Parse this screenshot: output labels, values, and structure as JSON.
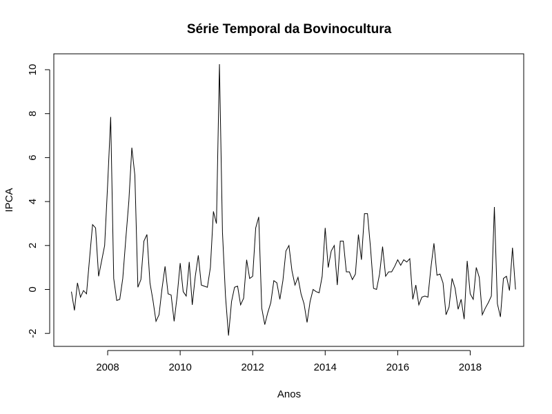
{
  "chart_data": {
    "type": "line",
    "title": "Série Temporal da Bovinocultura",
    "xlabel": "Anos",
    "ylabel": "IPCA",
    "xlim": [
      2007.0,
      2019.0
    ],
    "ylim": [
      -2.1,
      10.25
    ],
    "x_ticks": [
      2008,
      2010,
      2012,
      2014,
      2016,
      2018
    ],
    "x_tick_labels": [
      "2008",
      "2010",
      "2012",
      "2014",
      "2016",
      "2018"
    ],
    "y_ticks": [
      -2,
      0,
      2,
      4,
      6,
      8,
      10
    ],
    "y_tick_labels": [
      "-2",
      "0",
      "2",
      "4",
      "6",
      "8",
      "10"
    ],
    "grid": false,
    "legend": "none",
    "line_color": "#000000",
    "series": [
      {
        "start": 2007.0,
        "step_months": 1,
        "values": [
          -0.1,
          -0.95,
          0.3,
          -0.35,
          -0.05,
          -0.2,
          1.4,
          2.95,
          2.8,
          0.6,
          1.3,
          2.0,
          4.8,
          7.85,
          0.5,
          -0.5,
          -0.45,
          0.5,
          2.3,
          4.0,
          6.45,
          5.2,
          0.1,
          0.45,
          2.2,
          2.5,
          0.3,
          -0.5,
          -1.45,
          -1.15,
          0.05,
          1.05,
          -0.2,
          -0.25,
          -1.45,
          -0.3,
          1.2,
          -0.1,
          -0.3,
          1.25,
          -0.7,
          0.6,
          1.55,
          0.2,
          0.15,
          0.1,
          1.0,
          3.55,
          3.0,
          10.25,
          2.6,
          -0.3,
          -2.1,
          -0.55,
          0.1,
          0.15,
          -0.7,
          -0.4,
          1.35,
          0.5,
          0.6,
          2.8,
          3.3,
          -0.85,
          -1.6,
          -1.05,
          -0.6,
          0.4,
          0.3,
          -0.45,
          0.4,
          1.75,
          2.0,
          0.85,
          0.2,
          0.55,
          -0.2,
          -0.65,
          -1.5,
          -0.55,
          0.0,
          -0.1,
          -0.15,
          0.6,
          2.8,
          1.0,
          1.75,
          2.0,
          0.2,
          2.2,
          2.2,
          0.8,
          0.8,
          0.45,
          0.7,
          2.5,
          1.35,
          3.45,
          3.45,
          1.9,
          0.05,
          0.0,
          0.7,
          1.95,
          0.6,
          0.8,
          0.8,
          1.05,
          1.35,
          1.1,
          1.35,
          1.25,
          1.4,
          -0.45,
          0.2,
          -0.7,
          -0.35,
          -0.3,
          -0.35,
          1.0,
          2.1,
          0.65,
          0.7,
          0.3,
          -1.15,
          -0.8,
          0.5,
          0.05,
          -0.9,
          -0.45,
          -1.35,
          1.3,
          -0.2,
          -0.45,
          1.0,
          0.55,
          -1.15,
          -0.85,
          -0.6,
          -0.3,
          3.75,
          -0.65,
          -1.25,
          0.5,
          0.6,
          -0.05,
          1.9,
          0.0
        ]
      }
    ]
  }
}
